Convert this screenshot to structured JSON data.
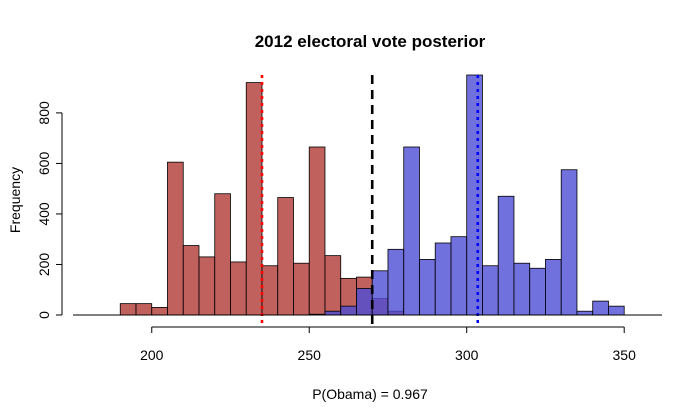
{
  "chart_data": {
    "type": "histogram",
    "title": "2012 electoral vote posterior",
    "xlabel": "P(Obama) = 0.967",
    "ylabel": "Frequency",
    "xlim": [
      175,
      362
    ],
    "ylim": [
      0,
      950
    ],
    "bin_width": 5,
    "x_ticks": [
      200,
      250,
      300,
      350
    ],
    "y_ticks": [
      0,
      200,
      400,
      600,
      800
    ],
    "series": [
      {
        "color": "#b03a36",
        "bins": [
          {
            "x0": 190,
            "x1": 195,
            "count": 45
          },
          {
            "x0": 195,
            "x1": 200,
            "count": 45
          },
          {
            "x0": 200,
            "x1": 205,
            "count": 30
          },
          {
            "x0": 205,
            "x1": 210,
            "count": 605
          },
          {
            "x0": 210,
            "x1": 215,
            "count": 275
          },
          {
            "x0": 215,
            "x1": 220,
            "count": 230
          },
          {
            "x0": 220,
            "x1": 225,
            "count": 480
          },
          {
            "x0": 225,
            "x1": 230,
            "count": 210
          },
          {
            "x0": 230,
            "x1": 235,
            "count": 920
          },
          {
            "x0": 235,
            "x1": 240,
            "count": 195
          },
          {
            "x0": 240,
            "x1": 245,
            "count": 465
          },
          {
            "x0": 245,
            "x1": 250,
            "count": 205
          },
          {
            "x0": 250,
            "x1": 255,
            "count": 665
          },
          {
            "x0": 255,
            "x1": 260,
            "count": 235
          },
          {
            "x0": 260,
            "x1": 265,
            "count": 145
          },
          {
            "x0": 265,
            "x1": 270,
            "count": 150
          },
          {
            "x0": 270,
            "x1": 275,
            "count": 65
          },
          {
            "x0": 275,
            "x1": 280,
            "count": 15
          }
        ]
      },
      {
        "color": "#4d4dd6",
        "bins": [
          {
            "x0": 250,
            "x1": 255,
            "count": 3
          },
          {
            "x0": 255,
            "x1": 260,
            "count": 15
          },
          {
            "x0": 260,
            "x1": 265,
            "count": 35
          },
          {
            "x0": 265,
            "x1": 270,
            "count": 105
          },
          {
            "x0": 270,
            "x1": 275,
            "count": 175
          },
          {
            "x0": 275,
            "x1": 280,
            "count": 260
          },
          {
            "x0": 280,
            "x1": 285,
            "count": 665
          },
          {
            "x0": 285,
            "x1": 290,
            "count": 220
          },
          {
            "x0": 290,
            "x1": 295,
            "count": 285
          },
          {
            "x0": 295,
            "x1": 300,
            "count": 310
          },
          {
            "x0": 300,
            "x1": 305,
            "count": 960
          },
          {
            "x0": 305,
            "x1": 310,
            "count": 195
          },
          {
            "x0": 310,
            "x1": 315,
            "count": 470
          },
          {
            "x0": 315,
            "x1": 320,
            "count": 205
          },
          {
            "x0": 320,
            "x1": 325,
            "count": 185
          },
          {
            "x0": 325,
            "x1": 330,
            "count": 220
          },
          {
            "x0": 330,
            "x1": 335,
            "count": 575
          },
          {
            "x0": 335,
            "x1": 340,
            "count": 15
          },
          {
            "x0": 340,
            "x1": 345,
            "count": 55
          },
          {
            "x0": 345,
            "x1": 350,
            "count": 35
          }
        ]
      }
    ],
    "reference_lines": [
      {
        "x": 235,
        "color": "#ff0000",
        "style": "dotted"
      },
      {
        "x": 270,
        "color": "#000000",
        "style": "dashed"
      },
      {
        "x": 303.5,
        "color": "#0000ff",
        "style": "dotted"
      }
    ]
  }
}
